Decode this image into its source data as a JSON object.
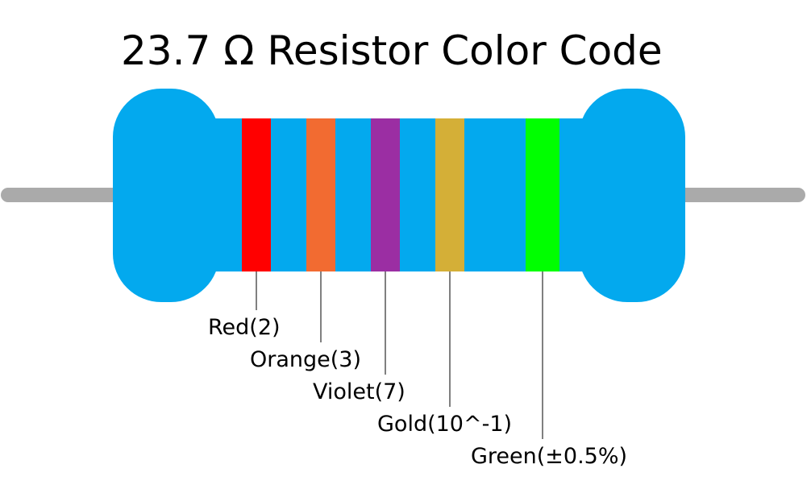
{
  "title": "23.7 Ω Resistor Color Code",
  "bands": [
    {
      "label": "Red(2)",
      "color": "#ff0000"
    },
    {
      "label": "Orange(3)",
      "color": "#f26b31"
    },
    {
      "label": "Violet(7)",
      "color": "#9b2ea3"
    },
    {
      "label": "Gold(10^-1)",
      "color": "#d4af37"
    },
    {
      "label": "Green(±0.5%)",
      "color": "#00ff00"
    }
  ]
}
